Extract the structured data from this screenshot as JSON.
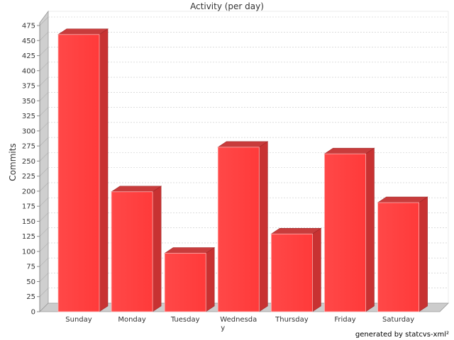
{
  "chart_data": {
    "type": "bar",
    "title": "Activity (per day)",
    "xlabel": "",
    "ylabel": "Commits",
    "categories": [
      "Sunday",
      "Monday",
      "Tuesday",
      "Wednesday",
      "Thursday",
      "Friday",
      "Saturday"
    ],
    "category_labels": [
      [
        "Sunday"
      ],
      [
        "Monday"
      ],
      [
        "Tuesday"
      ],
      [
        "Wednesda",
        "y"
      ],
      [
        "Thursday"
      ],
      [
        "Friday"
      ],
      [
        "Saturday"
      ]
    ],
    "values": [
      460,
      199,
      97,
      273,
      129,
      262,
      181
    ],
    "ylim": [
      0,
      475
    ],
    "ytick_step": 25,
    "grid": true,
    "style": "3d",
    "bar_color": "#ff4444",
    "footer": "generated by statcvs-xml²"
  }
}
